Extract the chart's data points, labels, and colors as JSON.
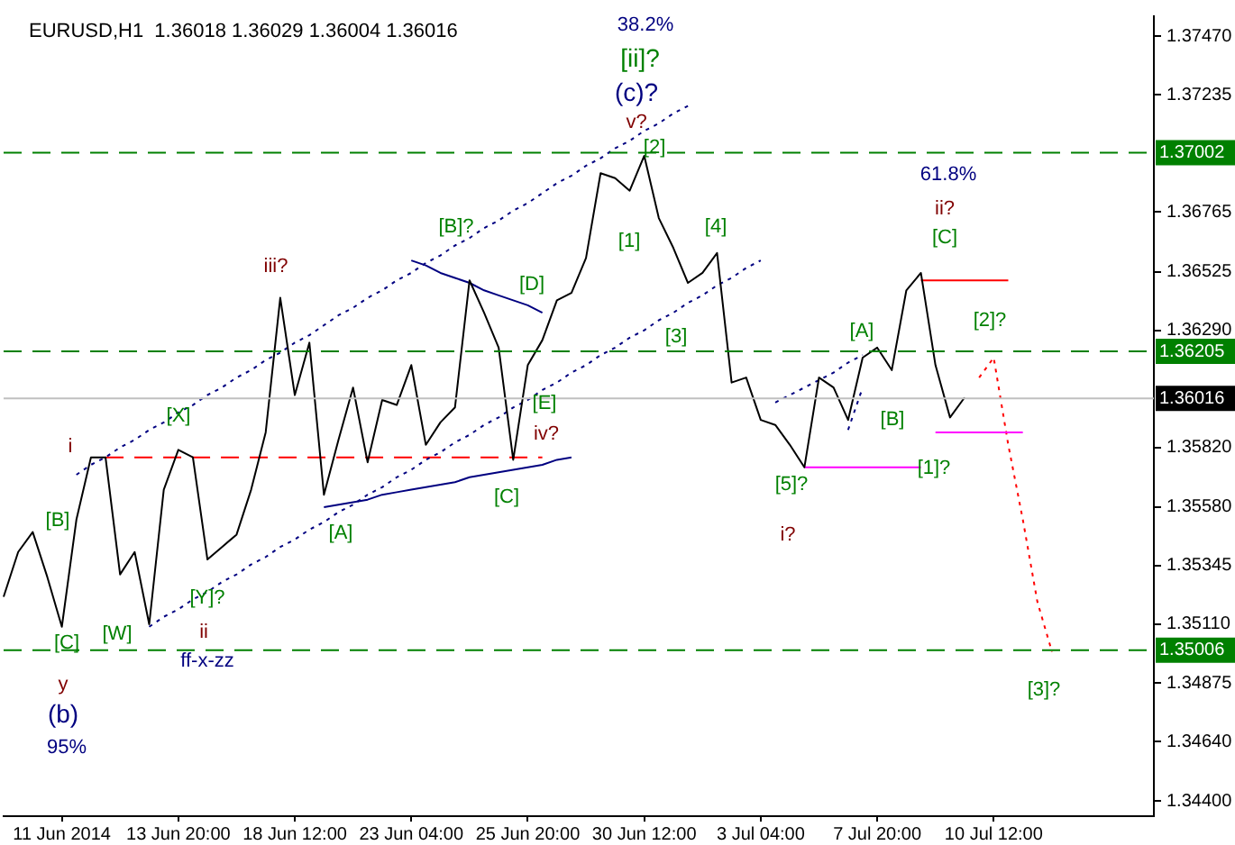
{
  "chart_data": {
    "type": "line",
    "title": "EURUSD,H1  1.36018 1.36029 1.36004 1.36016",
    "categories": [
      null,
      null,
      null,
      null,
      "11 Jun 2014",
      null,
      null,
      null,
      null,
      null,
      null,
      null,
      "13 Jun 20:00",
      null,
      null,
      null,
      null,
      null,
      null,
      null,
      "18 Jun 12:00",
      null,
      null,
      null,
      null,
      null,
      null,
      null,
      "23 Jun 04:00",
      null,
      null,
      null,
      null,
      null,
      null,
      null,
      "25 Jun 20:00",
      null,
      null,
      null,
      null,
      null,
      null,
      null,
      "30 Jun 12:00",
      null,
      null,
      null,
      null,
      null,
      null,
      null,
      "3 Jul 04:00",
      null,
      null,
      null,
      null,
      null,
      null,
      null,
      "7 Jul 20:00",
      null,
      null,
      null,
      null,
      null,
      null,
      null,
      "10 Jul 12:00",
      null,
      null,
      null,
      null,
      null,
      null,
      null,
      null,
      null,
      null,
      null
    ],
    "ylim": [
      1.3434,
      1.3755
    ],
    "yticks": [
      {
        "value": 1.3747,
        "label": "1.37470"
      },
      {
        "value": 1.37235,
        "label": "1.37235"
      },
      {
        "value": 1.36765,
        "label": "1.36765"
      },
      {
        "value": 1.36525,
        "label": "1.36525"
      },
      {
        "value": 1.3629,
        "label": "1.36290"
      },
      {
        "value": 1.3582,
        "label": "1.35820"
      },
      {
        "value": 1.3558,
        "label": "1.35580"
      },
      {
        "value": 1.35345,
        "label": "1.35345"
      },
      {
        "value": 1.3511,
        "label": "1.35110"
      },
      {
        "value": 1.34875,
        "label": "1.34875"
      },
      {
        "value": 1.3464,
        "label": "1.34640"
      },
      {
        "value": 1.344,
        "label": "1.34400"
      }
    ],
    "grid": false,
    "legend": false,
    "marker": "none",
    "series": [
      {
        "type": "line",
        "color": "#000000",
        "line_style": "solid",
        "values": [
          1.3522,
          1.354,
          1.3548,
          1.353,
          1.351,
          1.3553,
          1.3578,
          1.3578,
          1.3531,
          1.354,
          1.3511,
          1.3565,
          1.3581,
          1.3578,
          1.3537,
          1.3542,
          1.3547,
          1.3565,
          1.3588,
          1.3642,
          1.3603,
          1.3624,
          1.3563,
          1.3585,
          1.3606,
          1.3576,
          1.3601,
          1.3599,
          1.3615,
          1.3583,
          1.3592,
          1.3598,
          1.3649,
          1.3636,
          1.3622,
          1.3577,
          1.3615,
          1.3625,
          1.3641,
          1.3644,
          1.3658,
          1.3692,
          1.369,
          1.3685,
          1.3699,
          1.3674,
          1.3662,
          1.3648,
          1.3652,
          1.366,
          1.3608,
          1.361,
          1.3593,
          1.3591,
          1.3583,
          1.3574,
          1.361,
          1.3606,
          1.3593,
          1.3618,
          1.3622,
          1.3613,
          1.3645,
          1.3652,
          1.3615,
          1.3594,
          1.3602,
          null,
          null,
          null,
          null,
          null,
          null,
          null,
          null,
          null,
          null,
          null,
          null,
          null
        ]
      },
      {
        "type": "line",
        "color": "#000080",
        "line_style": "dotted",
        "values": [
          null,
          null,
          null,
          null,
          null,
          1.3571,
          1.3575,
          1.3578,
          1.3582,
          1.3585,
          1.3589,
          1.3592,
          1.3596,
          1.3599,
          1.3603,
          1.3606,
          1.361,
          1.3613,
          1.3617,
          1.362,
          1.3624,
          1.3627,
          1.3631,
          1.3635,
          1.3638,
          1.3642,
          1.3645,
          1.3649,
          1.3652,
          1.3656,
          1.3659,
          1.3663,
          1.3666,
          1.367,
          1.3673,
          1.3677,
          1.368,
          1.3684,
          1.3688,
          1.3691,
          1.3695,
          1.3698,
          1.3702,
          1.3705,
          1.3709,
          1.3712,
          1.3716,
          1.3719,
          null,
          null,
          null,
          null,
          null,
          null,
          null,
          null,
          null,
          null,
          null,
          null,
          null,
          null,
          null,
          null,
          null,
          null,
          null,
          null,
          null,
          null,
          null,
          null,
          null,
          null,
          null,
          null,
          null,
          null,
          null,
          null
        ]
      },
      {
        "type": "line",
        "color": "#000080",
        "line_style": "dotted",
        "values": [
          null,
          null,
          null,
          null,
          null,
          null,
          null,
          null,
          null,
          null,
          1.351,
          1.3514,
          1.3517,
          1.3521,
          1.3524,
          1.3528,
          1.3531,
          1.3535,
          1.3538,
          1.3542,
          1.3545,
          1.3549,
          1.3552,
          1.3556,
          1.3559,
          1.3563,
          1.3566,
          1.357,
          1.3573,
          1.3577,
          1.358,
          1.3584,
          1.3587,
          1.3591,
          1.3594,
          1.3598,
          1.3601,
          1.3605,
          1.3608,
          1.3612,
          1.3615,
          1.3619,
          1.3622,
          1.3626,
          1.3629,
          1.3633,
          1.3636,
          1.364,
          1.3643,
          1.3647,
          1.365,
          1.3654,
          1.3657,
          null,
          null,
          null,
          null,
          null,
          null,
          null,
          null,
          null,
          null,
          null,
          null,
          null,
          null,
          null,
          null,
          null,
          null,
          null,
          null,
          null,
          null,
          null,
          null,
          null,
          null,
          null
        ]
      },
      {
        "type": "line",
        "color": "#000080",
        "line_style": "solid",
        "values": [
          null,
          null,
          null,
          null,
          null,
          null,
          null,
          null,
          null,
          null,
          null,
          null,
          null,
          null,
          null,
          null,
          null,
          null,
          null,
          null,
          null,
          null,
          null,
          null,
          null,
          null,
          null,
          null,
          1.3657,
          1.3655,
          1.3652,
          1.365,
          1.3648,
          1.3645,
          1.3643,
          1.3641,
          1.3639,
          1.3636,
          null,
          null,
          null,
          null,
          null,
          null,
          null,
          null,
          null,
          null,
          null,
          null,
          null,
          null,
          null,
          null,
          null,
          null,
          null,
          null,
          null,
          null,
          null,
          null,
          null,
          null,
          null,
          null,
          null,
          null,
          null,
          null,
          null,
          null,
          null,
          null,
          null,
          null,
          null,
          null,
          null,
          null
        ]
      },
      {
        "type": "line",
        "color": "#000080",
        "line_style": "solid",
        "values": [
          null,
          null,
          null,
          null,
          null,
          null,
          null,
          null,
          null,
          null,
          null,
          null,
          null,
          null,
          null,
          null,
          null,
          null,
          null,
          null,
          null,
          null,
          1.3558,
          1.3559,
          1.356,
          1.3561,
          1.3563,
          1.3564,
          1.3565,
          1.3566,
          1.3567,
          1.3568,
          1.357,
          1.3571,
          1.3572,
          1.3573,
          1.3574,
          1.3575,
          1.3577,
          1.3578,
          null,
          null,
          null,
          null,
          null,
          null,
          null,
          null,
          null,
          null,
          null,
          null,
          null,
          null,
          null,
          null,
          null,
          null,
          null,
          null,
          null,
          null,
          null,
          null,
          null,
          null,
          null,
          null,
          null,
          null,
          null,
          null,
          null,
          null,
          null,
          null,
          null,
          null,
          null,
          null
        ]
      },
      {
        "type": "line",
        "color": "#ff0000",
        "line_style": "dashed",
        "values": [
          null,
          null,
          null,
          null,
          null,
          null,
          null,
          1.3578,
          1.3578,
          1.3578,
          1.3578,
          1.3578,
          1.3578,
          1.3578,
          1.3578,
          1.3578,
          1.3578,
          1.3578,
          1.3578,
          1.3578,
          1.3578,
          1.3578,
          1.3578,
          1.3578,
          1.3578,
          1.3578,
          1.3578,
          1.3578,
          1.3578,
          1.3578,
          1.3578,
          1.3578,
          1.3578,
          1.3578,
          1.3578,
          1.3578,
          1.3578,
          1.3578,
          null,
          null,
          null,
          null,
          null,
          null,
          null,
          null,
          null,
          null,
          null,
          null,
          null,
          null,
          null,
          null,
          null,
          null,
          null,
          null,
          null,
          null,
          null,
          null,
          null,
          null,
          null,
          null,
          null,
          null,
          null,
          null,
          null,
          null,
          null,
          null,
          null,
          null,
          null,
          null,
          null,
          null
        ]
      },
      {
        "type": "line",
        "color": "#000080",
        "line_style": "dotted",
        "values": [
          null,
          null,
          null,
          null,
          null,
          null,
          null,
          null,
          null,
          null,
          null,
          null,
          null,
          null,
          null,
          null,
          null,
          null,
          null,
          null,
          null,
          null,
          null,
          null,
          null,
          null,
          null,
          null,
          null,
          null,
          null,
          null,
          null,
          null,
          null,
          null,
          null,
          null,
          null,
          null,
          null,
          null,
          null,
          null,
          null,
          null,
          null,
          null,
          null,
          null,
          null,
          null,
          null,
          1.36,
          1.3603,
          1.3606,
          1.3609,
          1.3612,
          1.3616,
          1.3619,
          null,
          null,
          null,
          null,
          null,
          null,
          null,
          null,
          null,
          null,
          null,
          null,
          null,
          null,
          null,
          null,
          null,
          null,
          null,
          null
        ]
      },
      {
        "type": "line",
        "color": "#000080",
        "line_style": "dotted",
        "values": [
          null,
          null,
          null,
          null,
          null,
          null,
          null,
          null,
          null,
          null,
          null,
          null,
          null,
          null,
          null,
          null,
          null,
          null,
          null,
          null,
          null,
          null,
          null,
          null,
          null,
          null,
          null,
          null,
          null,
          null,
          null,
          null,
          null,
          null,
          null,
          null,
          null,
          null,
          null,
          null,
          null,
          null,
          null,
          null,
          null,
          null,
          null,
          null,
          null,
          null,
          null,
          null,
          null,
          null,
          null,
          null,
          null,
          null,
          1.3589,
          1.3606,
          null,
          null,
          null,
          null,
          null,
          null,
          null,
          null,
          null,
          null,
          null,
          null,
          null,
          null,
          null,
          null,
          null,
          null,
          null,
          null
        ]
      },
      {
        "type": "line",
        "color": "#ff0000",
        "line_style": "solid",
        "values": [
          null,
          null,
          null,
          null,
          null,
          null,
          null,
          null,
          null,
          null,
          null,
          null,
          null,
          null,
          null,
          null,
          null,
          null,
          null,
          null,
          null,
          null,
          null,
          null,
          null,
          null,
          null,
          null,
          null,
          null,
          null,
          null,
          null,
          null,
          null,
          null,
          null,
          null,
          null,
          null,
          null,
          null,
          null,
          null,
          null,
          null,
          null,
          null,
          null,
          null,
          null,
          null,
          null,
          null,
          null,
          null,
          null,
          null,
          null,
          null,
          null,
          null,
          null,
          1.3649,
          1.3649,
          1.3649,
          1.3649,
          1.3649,
          1.3649,
          1.3649,
          null,
          null,
          null,
          null,
          null,
          null,
          null,
          null,
          null,
          null
        ]
      },
      {
        "type": "line",
        "color": "#ff00ff",
        "line_style": "solid",
        "values": [
          null,
          null,
          null,
          null,
          null,
          null,
          null,
          null,
          null,
          null,
          null,
          null,
          null,
          null,
          null,
          null,
          null,
          null,
          null,
          null,
          null,
          null,
          null,
          null,
          null,
          null,
          null,
          null,
          null,
          null,
          null,
          null,
          null,
          null,
          null,
          null,
          null,
          null,
          null,
          null,
          null,
          null,
          null,
          null,
          null,
          null,
          null,
          null,
          null,
          null,
          null,
          null,
          null,
          null,
          null,
          1.3574,
          1.3574,
          1.3574,
          1.3574,
          1.3574,
          1.3574,
          1.3574,
          1.3574,
          1.3574,
          null,
          null,
          null,
          null,
          null,
          null,
          null,
          null,
          null,
          null,
          null,
          null,
          null,
          null,
          null,
          null
        ]
      },
      {
        "type": "line",
        "color": "#ff00ff",
        "line_style": "solid",
        "values": [
          null,
          null,
          null,
          null,
          null,
          null,
          null,
          null,
          null,
          null,
          null,
          null,
          null,
          null,
          null,
          null,
          null,
          null,
          null,
          null,
          null,
          null,
          null,
          null,
          null,
          null,
          null,
          null,
          null,
          null,
          null,
          null,
          null,
          null,
          null,
          null,
          null,
          null,
          null,
          null,
          null,
          null,
          null,
          null,
          null,
          null,
          null,
          null,
          null,
          null,
          null,
          null,
          null,
          null,
          null,
          null,
          null,
          null,
          null,
          null,
          null,
          null,
          null,
          null,
          1.3588,
          1.3588,
          1.3588,
          1.3588,
          1.3588,
          1.3588,
          1.3588,
          null,
          null,
          null,
          null,
          null,
          null,
          null,
          null,
          null
        ]
      },
      {
        "type": "line",
        "color": "#ff0000",
        "line_style": "dotted",
        "values": [
          null,
          null,
          null,
          null,
          null,
          null,
          null,
          null,
          null,
          null,
          null,
          null,
          null,
          null,
          null,
          null,
          null,
          null,
          null,
          null,
          null,
          null,
          null,
          null,
          null,
          null,
          null,
          null,
          null,
          null,
          null,
          null,
          null,
          null,
          null,
          null,
          null,
          null,
          null,
          null,
          null,
          null,
          null,
          null,
          null,
          null,
          null,
          null,
          null,
          null,
          null,
          null,
          null,
          null,
          null,
          null,
          null,
          null,
          null,
          null,
          null,
          null,
          null,
          null,
          null,
          null,
          null,
          1.361,
          1.3618,
          1.3583,
          1.3553,
          1.352,
          1.35,
          null,
          null,
          null,
          null,
          null,
          null,
          null
        ]
      }
    ],
    "ref_lines": [
      {
        "axis": "y",
        "value": 1.37002,
        "label": "1.37002",
        "color": "#008000",
        "line_style": "dashed"
      },
      {
        "axis": "y",
        "value": 1.36205,
        "label": "1.36205",
        "color": "#008000",
        "line_style": "dashed"
      },
      {
        "axis": "y",
        "value": 1.36016,
        "label": "1.36016",
        "color": "#c0c0c0",
        "line_style": "solid"
      },
      {
        "axis": "y",
        "value": 1.35006,
        "label": "1.35006",
        "color": "#008000",
        "line_style": "dashed"
      }
    ],
    "annotations": [
      "i",
      "[B]",
      "[X]",
      "[W]",
      "[C]",
      "y",
      "(b)",
      "95%",
      "[Y]?",
      "ii",
      "ff-x-zz",
      "iii?",
      "[A]",
      "[B]?",
      "[D]",
      "[E]",
      "iv?",
      "[C]",
      "38.2%",
      "[ii]?",
      "(c)?",
      "v?",
      "[2]",
      "[1]",
      "[4]",
      "[3]",
      "[5]?",
      "i?",
      "[A]",
      "[B]",
      "[1]?",
      "61.8%",
      "ii?",
      "[C]",
      "[2]?",
      "[3]?"
    ]
  }
}
